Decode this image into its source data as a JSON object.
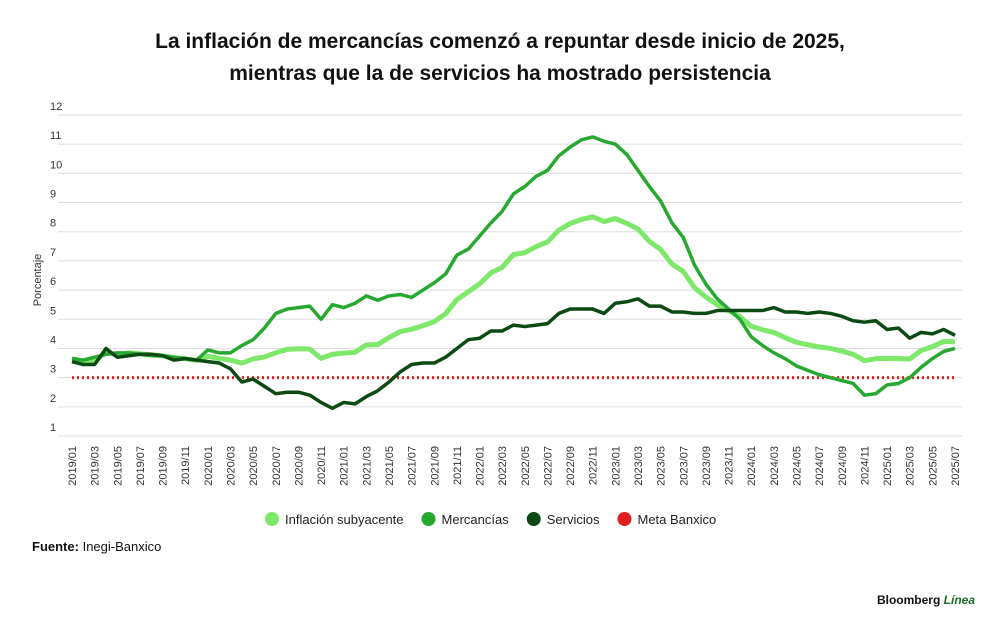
{
  "chart_data": {
    "type": "line",
    "title_lines": [
      "La inflación de mercancías comenzó a repuntar desde inicio de 2025,",
      "mientras que la de servicios ha mostrado persistencia"
    ],
    "y_label": "Porcentaje",
    "categories": [
      "2019/01",
      null,
      "2019/03",
      null,
      "2019/05",
      null,
      "2019/07",
      null,
      "2019/09",
      null,
      "2019/11",
      null,
      "2020/01",
      null,
      "2020/03",
      null,
      "2020/05",
      null,
      "2020/07",
      null,
      "2020/09",
      null,
      "2020/11",
      null,
      "2021/01",
      null,
      "2021/03",
      null,
      "2021/05",
      null,
      "2021/07",
      null,
      "2021/09",
      null,
      "2021/11",
      null,
      "2022/01",
      null,
      "2022/03",
      null,
      "2022/05",
      null,
      "2022/07",
      null,
      "2022/09",
      null,
      "2022/11",
      null,
      "2023/01",
      null,
      "2023/03",
      null,
      "2023/05",
      null,
      "2023/07",
      null,
      "2023/09",
      null,
      "2023/11",
      null,
      "2024/01",
      null,
      "2024/03",
      null,
      "2024/05",
      null,
      "2024/07",
      null,
      "2024/09",
      null,
      "2024/11",
      null,
      "2025/01",
      null,
      "2025/03",
      null,
      "2025/05",
      null,
      "2025/07"
    ],
    "series": [
      {
        "name": "Inflación subyacente",
        "color": "#7de86a",
        "values": [
          3.56,
          3.54,
          3.55,
          3.87,
          3.77,
          3.85,
          3.82,
          3.78,
          3.75,
          3.68,
          3.65,
          3.59,
          3.73,
          3.66,
          3.6,
          3.5,
          3.64,
          3.71,
          3.85,
          3.97,
          3.99,
          3.98,
          3.66,
          3.8,
          3.84,
          3.87,
          4.12,
          4.13,
          4.37,
          4.58,
          4.66,
          4.78,
          4.92,
          5.19,
          5.67,
          5.94,
          6.21,
          6.59,
          6.78,
          7.22,
          7.28,
          7.49,
          7.65,
          8.05,
          8.28,
          8.42,
          8.51,
          8.35,
          8.45,
          8.29,
          8.09,
          7.67,
          7.39,
          6.89,
          6.64,
          6.08,
          5.76,
          5.5,
          5.3,
          5.09,
          4.76,
          4.64,
          4.55,
          4.37,
          4.21,
          4.13,
          4.05,
          4.0,
          3.91,
          3.8,
          3.58,
          3.65,
          3.66,
          3.65,
          3.64,
          3.93,
          4.06,
          4.24,
          4.23
        ]
      },
      {
        "name": "Mercancías",
        "color": "#27a82f",
        "values": [
          3.66,
          3.6,
          3.7,
          3.8,
          3.85,
          3.85,
          3.8,
          3.75,
          3.75,
          3.7,
          3.65,
          3.6,
          3.95,
          3.85,
          3.85,
          4.1,
          4.3,
          4.7,
          5.2,
          5.35,
          5.4,
          5.45,
          5.0,
          5.5,
          5.4,
          5.55,
          5.8,
          5.65,
          5.8,
          5.85,
          5.75,
          6.0,
          6.25,
          6.55,
          7.2,
          7.4,
          7.85,
          8.3,
          8.7,
          9.3,
          9.55,
          9.9,
          10.1,
          10.6,
          10.9,
          11.15,
          11.25,
          11.1,
          11.0,
          10.65,
          10.1,
          9.55,
          9.05,
          8.3,
          7.8,
          6.85,
          6.2,
          5.7,
          5.35,
          5.0,
          4.4,
          4.1,
          3.85,
          3.65,
          3.4,
          3.25,
          3.1,
          3.0,
          2.9,
          2.8,
          2.4,
          2.45,
          2.75,
          2.8,
          3.0,
          3.35,
          3.65,
          3.9,
          4.0
        ]
      },
      {
        "name": "Servicios",
        "color": "#0b4a12",
        "values": [
          3.55,
          3.45,
          3.45,
          4.0,
          3.7,
          3.75,
          3.8,
          3.8,
          3.75,
          3.6,
          3.65,
          3.6,
          3.55,
          3.5,
          3.3,
          2.85,
          2.95,
          2.7,
          2.45,
          2.5,
          2.5,
          2.4,
          2.15,
          1.95,
          2.15,
          2.1,
          2.35,
          2.55,
          2.85,
          3.2,
          3.45,
          3.5,
          3.5,
          3.7,
          4.0,
          4.3,
          4.35,
          4.6,
          4.6,
          4.8,
          4.75,
          4.8,
          4.85,
          5.2,
          5.35,
          5.35,
          5.35,
          5.2,
          5.55,
          5.6,
          5.7,
          5.45,
          5.45,
          5.25,
          5.25,
          5.2,
          5.2,
          5.3,
          5.3,
          5.3,
          5.3,
          5.3,
          5.4,
          5.25,
          5.25,
          5.2,
          5.25,
          5.2,
          5.1,
          4.95,
          4.9,
          4.95,
          4.65,
          4.7,
          4.35,
          4.55,
          4.5,
          4.65,
          4.45
        ]
      }
    ],
    "target": {
      "name": "Meta Banxico",
      "color": "#e0201f",
      "value": 3
    },
    "ylim": [
      1,
      12
    ],
    "yticks": [
      1,
      2,
      3,
      4,
      5,
      6,
      7,
      8,
      9,
      10,
      11,
      12
    ],
    "grid": true,
    "legend": "bottom",
    "source_label": "Fuente:",
    "source": "Inegi-Banxico",
    "brand": [
      "Bloomberg",
      "Línea"
    ]
  }
}
